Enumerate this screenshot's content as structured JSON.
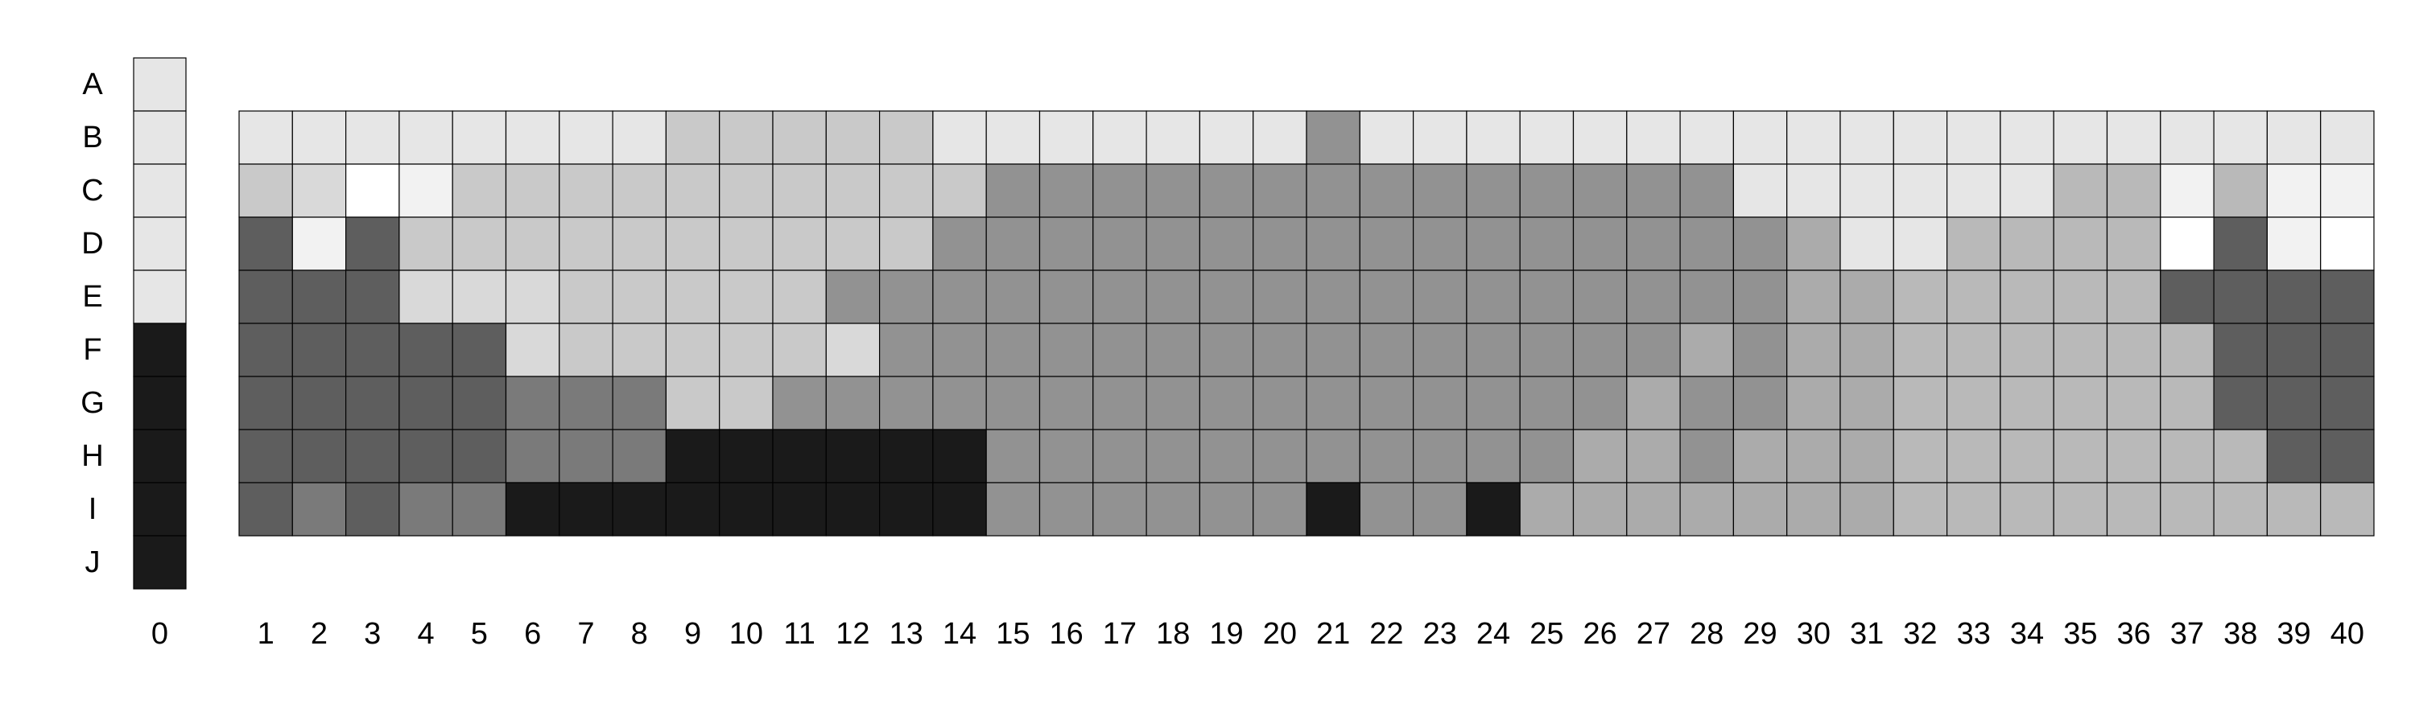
{
  "chart_data": {
    "type": "heatmap",
    "rows": [
      "A",
      "B",
      "C",
      "D",
      "E",
      "F",
      "G",
      "H",
      "I",
      "J"
    ],
    "columns": [
      "0",
      "1",
      "2",
      "3",
      "4",
      "5",
      "6",
      "7",
      "8",
      "9",
      "10",
      "11",
      "12",
      "13",
      "14",
      "15",
      "16",
      "17",
      "18",
      "19",
      "20",
      "21",
      "22",
      "23",
      "24",
      "25",
      "26",
      "27",
      "28",
      "29",
      "30",
      "31",
      "32",
      "33",
      "34",
      "35",
      "36",
      "37",
      "38",
      "39",
      "40"
    ],
    "palette": {
      "0": "#ffffff",
      "1": "#f2f2f2",
      "2": "#e6e6e6",
      "3": "#d9d9d9",
      "4": "#c9c9c9",
      "5": "#b9b9b9",
      "6": "#ababab",
      "7": "#929292",
      "8": "#7a7a7a",
      "9": "#5e5e5e",
      "10": "#1a1a1a"
    },
    "column0": [
      2,
      2,
      2,
      2,
      2,
      10,
      10,
      10,
      10,
      10
    ],
    "grid_rows": [
      "B",
      "C",
      "D",
      "E",
      "F",
      "G",
      "H",
      "I"
    ],
    "grid": [
      [
        2,
        2,
        2,
        2,
        2,
        2,
        2,
        2,
        4,
        4,
        4,
        4,
        4,
        2,
        2,
        2,
        2,
        2,
        2,
        2,
        7,
        2,
        2,
        2,
        2,
        2,
        2,
        2,
        2,
        2,
        2,
        2,
        2,
        2,
        2,
        2,
        2,
        2,
        2,
        2
      ],
      [
        4,
        3,
        0,
        1,
        4,
        4,
        4,
        4,
        4,
        4,
        4,
        4,
        4,
        4,
        7,
        7,
        7,
        7,
        7,
        7,
        7,
        7,
        7,
        7,
        7,
        7,
        7,
        7,
        2,
        2,
        2,
        2,
        2,
        2,
        5,
        5,
        1,
        5,
        1,
        1
      ],
      [
        9,
        1,
        9,
        4,
        4,
        4,
        4,
        4,
        4,
        4,
        4,
        4,
        4,
        7,
        7,
        7,
        7,
        7,
        7,
        7,
        7,
        7,
        7,
        7,
        7,
        7,
        7,
        7,
        7,
        6,
        2,
        2,
        5,
        5,
        5,
        5,
        0,
        9,
        1,
        0
      ],
      [
        9,
        9,
        9,
        3,
        3,
        3,
        4,
        4,
        4,
        4,
        4,
        7,
        7,
        7,
        7,
        7,
        7,
        7,
        7,
        7,
        7,
        7,
        7,
        7,
        7,
        7,
        7,
        7,
        7,
        6,
        6,
        5,
        5,
        5,
        5,
        5,
        9,
        9,
        9,
        9
      ],
      [
        9,
        9,
        9,
        9,
        9,
        3,
        4,
        4,
        4,
        4,
        4,
        3,
        7,
        7,
        7,
        7,
        7,
        7,
        7,
        7,
        7,
        7,
        7,
        7,
        7,
        7,
        7,
        6,
        7,
        6,
        6,
        5,
        5,
        5,
        5,
        5,
        5,
        9,
        9,
        9
      ],
      [
        9,
        9,
        9,
        9,
        9,
        8,
        8,
        8,
        4,
        4,
        7,
        7,
        7,
        7,
        7,
        7,
        7,
        7,
        7,
        7,
        7,
        7,
        7,
        7,
        7,
        7,
        6,
        7,
        7,
        6,
        6,
        5,
        5,
        5,
        5,
        5,
        5,
        9,
        9,
        9
      ],
      [
        9,
        9,
        9,
        9,
        9,
        8,
        8,
        8,
        10,
        10,
        10,
        10,
        10,
        10,
        7,
        7,
        7,
        7,
        7,
        7,
        7,
        7,
        7,
        7,
        7,
        6,
        6,
        7,
        6,
        6,
        6,
        5,
        5,
        5,
        5,
        5,
        5,
        5,
        9,
        9
      ],
      [
        9,
        8,
        9,
        8,
        8,
        10,
        10,
        10,
        10,
        10,
        10,
        10,
        10,
        10,
        7,
        7,
        7,
        7,
        7,
        7,
        10,
        7,
        7,
        10,
        6,
        6,
        6,
        6,
        6,
        6,
        6,
        5,
        5,
        5,
        5,
        5,
        5,
        5,
        5,
        5
      ]
    ]
  }
}
